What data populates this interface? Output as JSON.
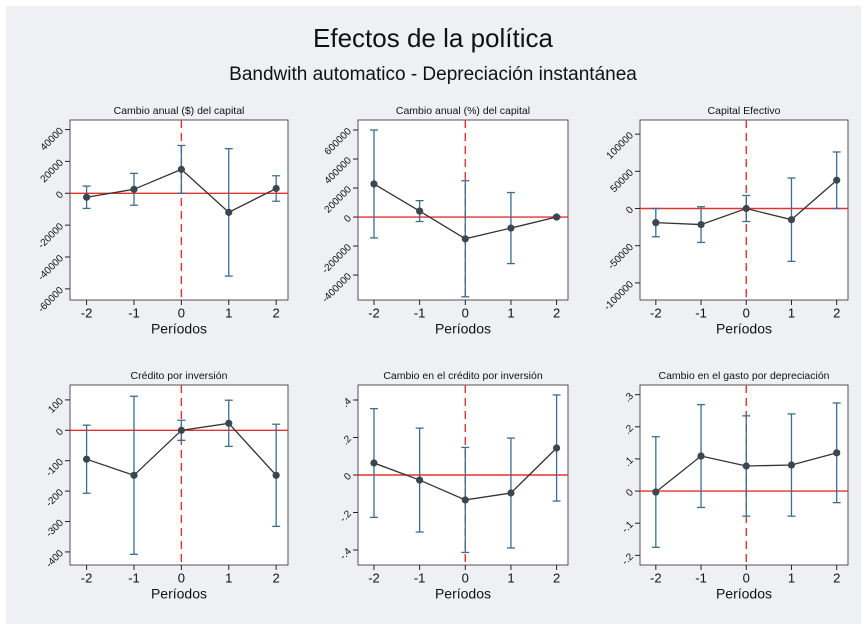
{
  "title": "Efectos de la política",
  "subtitle": "Bandwith automatico - Depreciación instantánea",
  "chart_data": [
    {
      "type": "errorbar",
      "title": "Cambio anual ($) del capital",
      "xlabel": "Períodos",
      "x": [
        -2,
        -1,
        0,
        1,
        2
      ],
      "values": [
        -2500,
        2500,
        15000,
        -12000,
        3000
      ],
      "errors": [
        7000,
        10000,
        15000,
        40000,
        8000
      ],
      "xlim": [
        -2.35,
        2.25
      ],
      "xticks": [
        -2,
        -1,
        0,
        1,
        2
      ],
      "ylim": [
        -67000,
        46000
      ],
      "yticks": [
        40000,
        20000,
        0,
        -20000,
        -40000,
        -60000
      ],
      "xline": 0,
      "yline": 0,
      "color": "#333333",
      "errorcolor": "#3e6d8e",
      "refcolor": "#e8312f"
    },
    {
      "type": "errorbar",
      "title": "Cambio anual (%) del capital",
      "xlabel": "Períodos",
      "x": [
        -2,
        -1,
        0,
        1,
        2
      ],
      "values": [
        228000,
        41000,
        -150000,
        -76000,
        0
      ],
      "errors": [
        372000,
        72000,
        400000,
        245000,
        5000
      ],
      "xlim": [
        -2.35,
        2.25
      ],
      "xticks": [
        -2,
        -1,
        0,
        1,
        2
      ],
      "ylim": [
        -572000,
        669000
      ],
      "yticks": [
        600000,
        400000,
        200000,
        0,
        -200000,
        -400000
      ],
      "xline": 0,
      "yline": 0,
      "color": "#333333",
      "errorcolor": "#3e6d8e",
      "refcolor": "#e8312f"
    },
    {
      "type": "errorbar",
      "title": "Capital Efectivo",
      "xlabel": "Períodos",
      "x": [
        -2,
        -1,
        0,
        1,
        2
      ],
      "values": [
        -19000,
        -21600,
        0,
        -15000,
        38000
      ],
      "errors": [
        19000,
        24000,
        17500,
        56000,
        38000
      ],
      "xlim": [
        -2.35,
        2.25
      ],
      "xticks": [
        -2,
        -1,
        0,
        1,
        2
      ],
      "ylim": [
        -123000,
        119000
      ],
      "yticks": [
        100000,
        50000,
        0,
        -50000,
        -100000
      ],
      "xline": 0,
      "yline": 0,
      "color": "#333333",
      "errorcolor": "#3e6d8e",
      "refcolor": "#e8312f"
    },
    {
      "type": "errorbar",
      "title": "Crédito por inversión",
      "xlabel": "Períodos",
      "x": [
        -2,
        -1,
        0,
        1,
        2
      ],
      "values": [
        -95,
        -148,
        0,
        23,
        -148
      ],
      "errors": [
        112,
        260,
        33,
        76,
        168
      ],
      "xlim": [
        -2.35,
        2.25
      ],
      "xticks": [
        -2,
        -1,
        0,
        1,
        2
      ],
      "ylim": [
        -443,
        149
      ],
      "yticks": [
        100,
        0,
        -100,
        -200,
        -300,
        -400
      ],
      "xline": 0,
      "yline": 0,
      "color": "#333333",
      "errorcolor": "#3e6d8e",
      "refcolor": "#e8312f"
    },
    {
      "type": "errorbar",
      "title": "Cambio en el crédito por inversión",
      "xlabel": "Períodos",
      "x": [
        -2,
        -1,
        0,
        1,
        2
      ],
      "values": [
        0.064,
        -0.027,
        -0.133,
        -0.096,
        0.144
      ],
      "errors": [
        0.29,
        0.277,
        0.28,
        0.293,
        0.283
      ],
      "xlim": [
        -2.35,
        2.25
      ],
      "xticks": [
        -2,
        -1,
        0,
        1,
        2
      ],
      "ylim": [
        -0.48,
        0.48
      ],
      "yticks": [
        {
          "value": 0.4,
          "label": ".4"
        },
        {
          "value": 0.2,
          "label": ".2"
        },
        0,
        {
          "value": -0.2,
          "label": "-.2"
        },
        {
          "value": -0.4,
          "label": "-.4"
        }
      ],
      "xline": 0,
      "yline": 0,
      "color": "#333333",
      "errorcolor": "#3e6d8e",
      "refcolor": "#e8312f"
    },
    {
      "type": "errorbar",
      "title": "Cambio en el gasto por depreciación",
      "xlabel": "Períodos",
      "x": [
        -2,
        -1,
        0,
        1,
        2
      ],
      "values": [
        -0.003,
        0.109,
        0.078,
        0.081,
        0.119
      ],
      "errors": [
        0.172,
        0.16,
        0.156,
        0.159,
        0.155
      ],
      "xlim": [
        -2.35,
        2.25
      ],
      "xticks": [
        -2,
        -1,
        0,
        1,
        2
      ],
      "ylim": [
        -0.23,
        0.33
      ],
      "yticks": [
        {
          "value": 0.3,
          "label": ".3"
        },
        {
          "value": 0.2,
          "label": ".2"
        },
        {
          "value": 0.1,
          "label": ".1"
        },
        0,
        {
          "value": -0.1,
          "label": "-.1"
        },
        {
          "value": -0.2,
          "label": "-.2"
        }
      ],
      "xline": 0,
      "yline": 0,
      "color": "#333333",
      "errorcolor": "#3e6d8e",
      "refcolor": "#e8312f"
    }
  ]
}
